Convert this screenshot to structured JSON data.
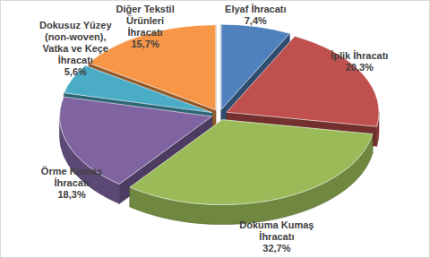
{
  "chart_data": {
    "type": "pie",
    "categories": [
      "Elyaf İhracatı",
      "İplik İhracatı",
      "Dokuma Kumaş İhracatı",
      "Örme Kumaş İhracatı",
      "Dokusuz Yüzey (non-woven), Vatka ve Keçe İhracatı",
      "Diğer Tekstil Ürünleri İhracatı"
    ],
    "values": [
      7.4,
      20.3,
      32.7,
      18.3,
      5.6,
      15.7
    ],
    "value_labels": [
      "7,4%",
      "20,3%",
      "32,7%",
      "18,3%",
      "5,6%",
      "15,7%"
    ],
    "colors": [
      "#4f81bd",
      "#c0504d",
      "#9bbb59",
      "#8064a2",
      "#4bacc6",
      "#f79646"
    ],
    "data_labels": true
  }
}
